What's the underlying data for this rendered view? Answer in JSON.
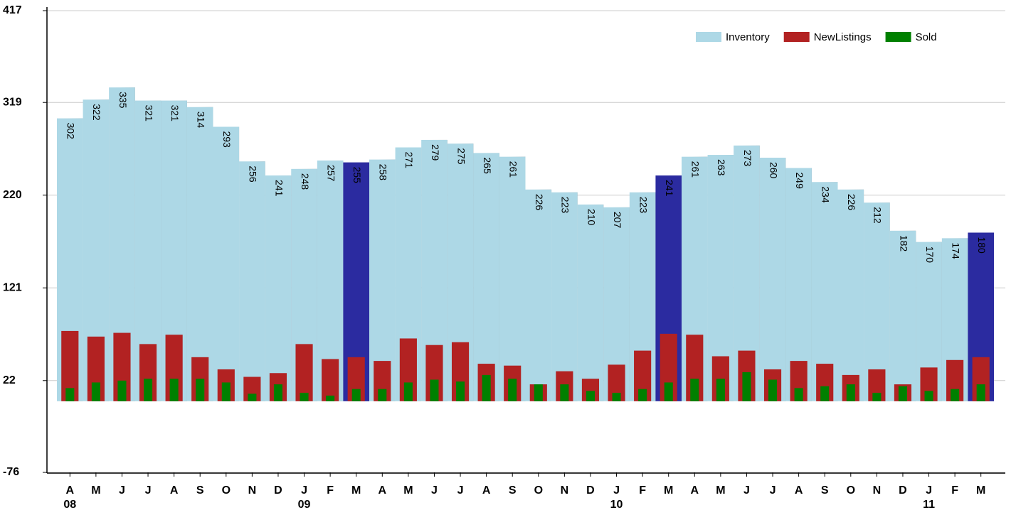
{
  "chart_data": {
    "type": "bar",
    "categories": [
      "A",
      "M",
      "J",
      "J",
      "A",
      "S",
      "O",
      "N",
      "D",
      "J",
      "F",
      "M",
      "A",
      "M",
      "J",
      "J",
      "A",
      "S",
      "O",
      "N",
      "D",
      "J",
      "F",
      "M",
      "A",
      "M",
      "J",
      "J",
      "A",
      "S",
      "O",
      "N",
      "D",
      "J",
      "F",
      "M"
    ],
    "years": [
      "08",
      null,
      null,
      null,
      null,
      null,
      null,
      null,
      null,
      "09",
      null,
      null,
      null,
      null,
      null,
      null,
      null,
      null,
      null,
      null,
      null,
      "10",
      null,
      null,
      null,
      null,
      null,
      null,
      null,
      null,
      null,
      null,
      null,
      "11",
      null,
      null
    ],
    "series": [
      {
        "name": "Inventory",
        "color": "#add8e6",
        "values": [
          302,
          322,
          335,
          321,
          321,
          314,
          293,
          256,
          241,
          248,
          257,
          255,
          258,
          271,
          279,
          275,
          265,
          261,
          226,
          223,
          210,
          207,
          223,
          241,
          261,
          263,
          273,
          260,
          249,
          234,
          226,
          212,
          182,
          170,
          174,
          180
        ]
      },
      {
        "name": "NewListings",
        "color": "#b22222",
        "values": [
          75,
          69,
          73,
          61,
          71,
          47,
          34,
          26,
          30,
          61,
          45,
          47,
          43,
          67,
          60,
          63,
          40,
          38,
          18,
          32,
          24,
          39,
          54,
          72,
          71,
          48,
          54,
          34,
          43,
          40,
          28,
          34,
          18,
          36,
          44,
          47
        ]
      },
      {
        "name": "Sold",
        "color": "#008000",
        "values": [
          14,
          20,
          22,
          24,
          24,
          24,
          20,
          8,
          18,
          9,
          6,
          13,
          13,
          20,
          23,
          21,
          28,
          24,
          18,
          18,
          11,
          9,
          13,
          20,
          24,
          24,
          31,
          23,
          14,
          16,
          18,
          9,
          16,
          11,
          13,
          18
        ]
      }
    ],
    "highlight": [
      11,
      23,
      35
    ],
    "highlight_color": "#2b2ba0",
    "ylim": [
      -76,
      417
    ],
    "yticks": [
      -76,
      22,
      121,
      220,
      319,
      417
    ],
    "grid": true,
    "legend": "top-right"
  }
}
